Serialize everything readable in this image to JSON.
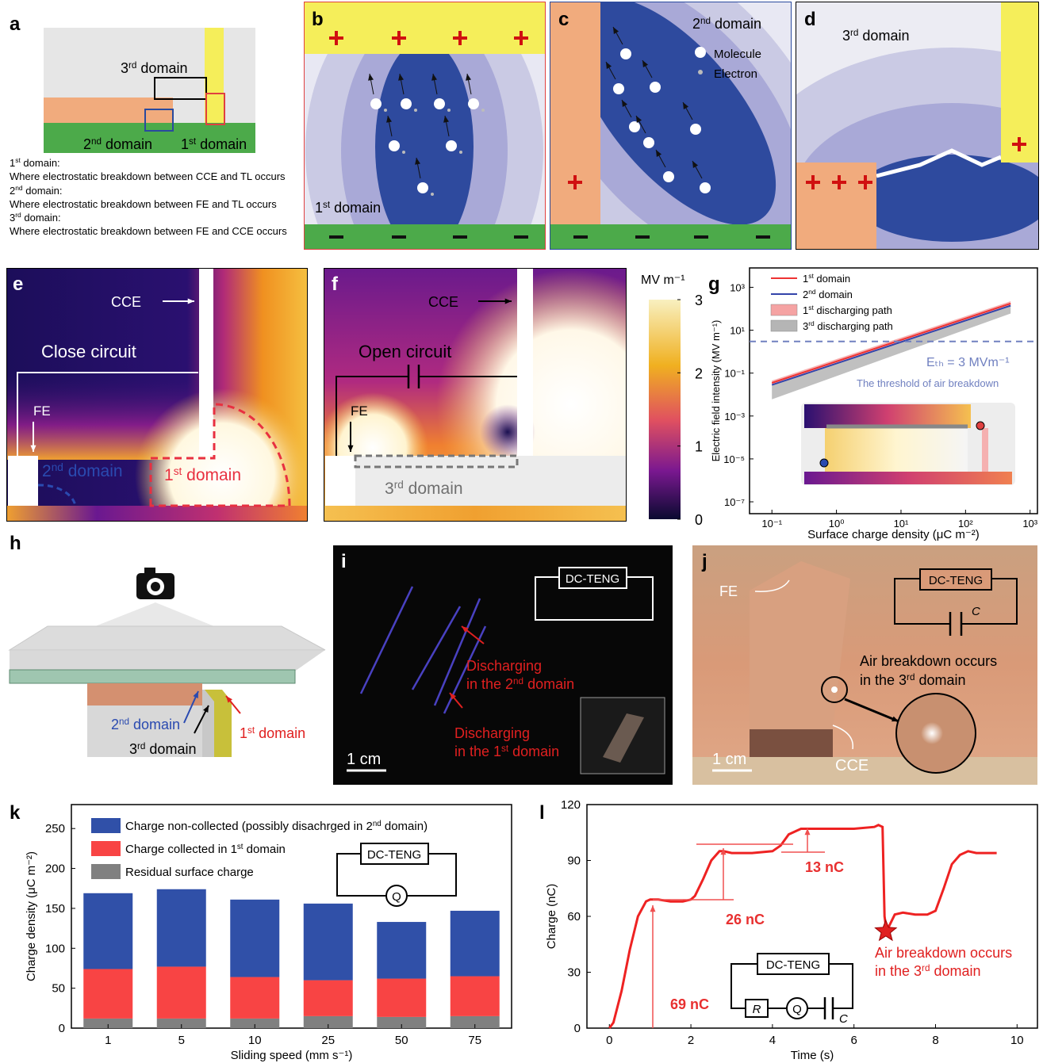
{
  "panels": {
    "a": {
      "label": "a",
      "domains": [
        "3rd domain",
        "2nd domain",
        "1st domain"
      ],
      "notes": [
        "1st domain:",
        "Where electrostatic breakdown between CCE and TL occurs",
        "2nd domain:",
        "Where electrostatic breakdown between FE and TL occurs",
        "3rd domain:",
        "Where electrostatic breakdown between FE and CCE occurs"
      ]
    },
    "b": {
      "label": "b",
      "domain": "1st domain"
    },
    "c": {
      "label": "c",
      "domain": "2nd domain",
      "legend": [
        "Molecule",
        "Electron"
      ]
    },
    "d": {
      "label": "d",
      "domain": "3rd domain"
    },
    "e": {
      "label": "e",
      "cce": "CCE",
      "circuit": "Close circuit",
      "fe": "FE",
      "domains": [
        "2nd domain",
        "1st domain"
      ]
    },
    "f": {
      "label": "f",
      "cce": "CCE",
      "circuit": "Open circuit",
      "fe": "FE",
      "domain": "3rd domain"
    },
    "colorbar": {
      "title": "MV m⁻¹",
      "ticks": [
        0,
        1,
        2,
        3
      ]
    },
    "g": {
      "label": "g"
    },
    "h": {
      "label": "h",
      "domains": [
        "2nd domain",
        "3rd domain",
        "1st domain"
      ]
    },
    "i": {
      "label": "i",
      "circuit": "DC-TENG",
      "notes": [
        [
          "Discharging",
          "in the 2nd domain"
        ],
        [
          "Discharging",
          "in the 1st domain"
        ]
      ],
      "scale": "1 cm"
    },
    "j": {
      "label": "j",
      "fe": "FE",
      "circuit": "DC-TENG",
      "capacitor": "C",
      "note": [
        "Air breakdown occurs",
        "in the 3rd domain"
      ],
      "scale": "1 cm",
      "cce": "CCE"
    },
    "k": {
      "label": "k"
    },
    "l": {
      "label": "l"
    }
  },
  "chart_data": [
    {
      "type": "line",
      "log_x": true,
      "log_y": true,
      "xlabel": "Surface charge density (μC m⁻²)",
      "ylabel": "Electric field intensity (MV m⁻¹)",
      "xlim": [
        0.045,
        1300
      ],
      "ylim": [
        2.8e-08,
        8000
      ],
      "xticks": [
        {
          "value": 0.1,
          "label": "10⁻¹"
        },
        {
          "value": 1,
          "label": "10⁰"
        },
        {
          "value": 10,
          "label": "10¹"
        },
        {
          "value": 100,
          "label": "10²"
        },
        {
          "value": 1000,
          "label": "10³"
        }
      ],
      "yticks": [
        {
          "value": 1e-07,
          "label": "10⁻⁷"
        },
        {
          "value": 1e-05,
          "label": "10⁻⁵"
        },
        {
          "value": 0.001,
          "label": "10⁻³"
        },
        {
          "value": 0.1,
          "label": "10⁻¹"
        },
        {
          "value": 10,
          "label": "10¹"
        },
        {
          "value": 1000,
          "label": "10³"
        }
      ],
      "x": [
        0.1,
        500
      ],
      "series": [
        {
          "name": "1st domain",
          "color": "#ee3333",
          "values": [
            0.035,
            175
          ]
        },
        {
          "name": "2nd domain",
          "color": "#3344aa",
          "values": [
            0.028,
            140
          ]
        },
        {
          "name": "1st discharging path",
          "color": "#f5a3a3",
          "low": [
            0.03,
            150
          ],
          "high": [
            0.045,
            225
          ]
        },
        {
          "name": "3rd discharging path",
          "color": "#b5b5b5",
          "low": [
            0.006,
            60
          ],
          "high": [
            0.028,
            140
          ]
        }
      ],
      "threshold": {
        "value": 3,
        "color": "#7080c0",
        "labels": [
          "Eₜₕ = 3 MVm⁻¹",
          "The threshold of air breakdown"
        ]
      }
    },
    {
      "type": "stacked_bar",
      "xlabel": "Sliding speed (mm s⁻¹)",
      "ylabel": "Charge density (μC m⁻²)",
      "categories": [
        "1",
        "5",
        "10",
        "25",
        "50",
        "75"
      ],
      "series": [
        {
          "name": "Residual surface charge",
          "color": "#808080",
          "values": [
            12,
            12,
            12,
            15,
            14,
            15
          ]
        },
        {
          "name": "Charge collected in 1st domain",
          "color": "#f84444",
          "values": [
            62,
            65,
            52,
            45,
            48,
            50
          ]
        },
        {
          "name": "Charge non-collected (possibly disachrged in 2nd domain)",
          "color": "#3050a8",
          "values": [
            95,
            97,
            97,
            96,
            71,
            82
          ]
        }
      ],
      "ylim": [
        0,
        280
      ],
      "yticks": [
        0,
        50,
        100,
        150,
        200,
        250
      ],
      "inset": {
        "circuit": "DC-TENG",
        "meter": "Q"
      }
    },
    {
      "type": "line",
      "xlabel": "Time (s)",
      "ylabel": "Charge (nC)",
      "xlim": [
        -0.55,
        10.5
      ],
      "ylim": [
        0,
        120
      ],
      "xticks": [
        0,
        2,
        4,
        6,
        8,
        10
      ],
      "yticks": [
        0,
        30,
        60,
        90,
        120
      ],
      "x": [
        0,
        0.1,
        0.3,
        0.5,
        0.7,
        0.9,
        1.0,
        1.2,
        1.5,
        1.8,
        2.0,
        2.1,
        2.3,
        2.5,
        2.7,
        2.8,
        3.0,
        3.5,
        4.0,
        4.2,
        4.4,
        4.6,
        4.7,
        4.9,
        5.5,
        6.0,
        6.5,
        6.6,
        6.7,
        6.75,
        6.8,
        7.0,
        7.2,
        7.5,
        7.8,
        8.0,
        8.2,
        8.4,
        8.6,
        8.8,
        9.0,
        9.5
      ],
      "values": [
        0,
        3,
        20,
        42,
        60,
        68,
        69,
        69,
        68,
        68,
        69,
        71,
        80,
        90,
        95,
        95,
        94,
        94,
        95,
        98,
        104,
        106,
        107,
        107,
        107,
        107,
        108,
        109,
        108,
        60,
        52,
        61,
        62,
        61,
        61,
        63,
        75,
        88,
        93,
        95,
        94,
        94
      ],
      "color": "#ee2222",
      "marker": {
        "x": 6.78,
        "y": 52
      },
      "annotations": [
        "69 nC",
        "26 nC",
        "13 nC"
      ],
      "note": [
        "Air breakdown occurs",
        "in the 3rd domain"
      ],
      "inset": {
        "circuit": "DC-TENG",
        "resistor": "R",
        "meter": "Q",
        "capacitor": "C"
      }
    }
  ]
}
